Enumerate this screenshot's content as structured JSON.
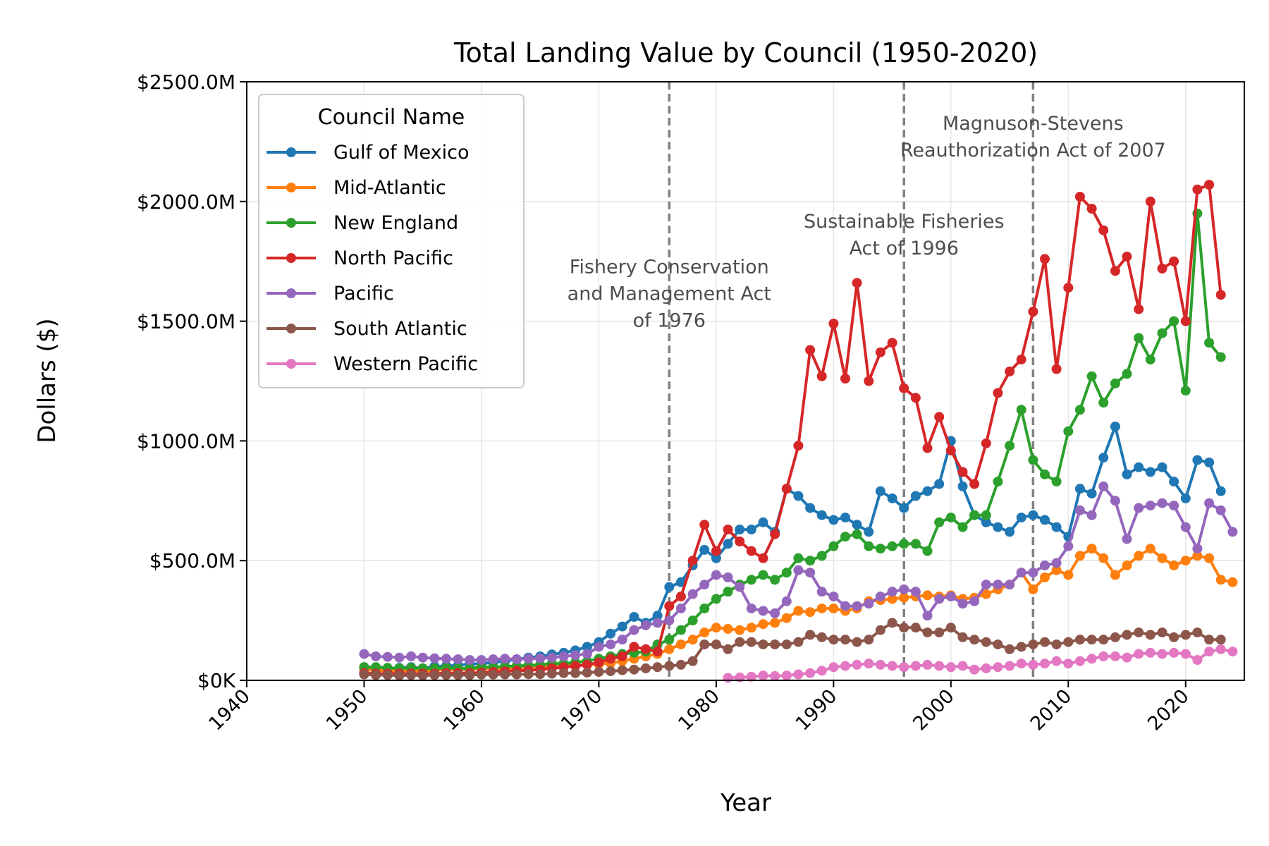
{
  "chart_data": {
    "type": "line",
    "title": "Total Landing Value by Council (1950-2020)",
    "xlabel": "Year",
    "ylabel": "Dollars ($)",
    "xlim": [
      1940,
      2025
    ],
    "ylim": [
      0,
      2500
    ],
    "y_units": "millions of dollars",
    "x_ticks": [
      1940,
      1950,
      1960,
      1970,
      1980,
      1990,
      2000,
      2010,
      2020
    ],
    "y_ticks": [
      0,
      500,
      1000,
      1500,
      2000,
      2500
    ],
    "y_tick_labels": [
      "$0K",
      "$500.0M",
      "$1000.0M",
      "$1500.0M",
      "$2000.0M",
      "$2500.0M"
    ],
    "grid": true,
    "legend": {
      "title": "Council Name",
      "placement": "upper-left"
    },
    "annotations": [
      {
        "x": 1976,
        "lines": [
          "Fishery Conservation",
          "and Management Act",
          "of 1976"
        ],
        "text_y": 1700
      },
      {
        "x": 1996,
        "lines": [
          "Sustainable Fisheries",
          "Act of 1996"
        ],
        "text_y": 1890
      },
      {
        "x": 2007,
        "lines": [
          "Magnuson-Stevens",
          "Reauthorization Act of 2007"
        ],
        "text_y": 2300
      }
    ],
    "series": [
      {
        "name": "Gulf of Mexico",
        "color": "#1f77b4",
        "start": 1950,
        "values": [
          55,
          50,
          48,
          52,
          55,
          50,
          58,
          60,
          62,
          68,
          70,
          75,
          80,
          88,
          95,
          100,
          108,
          115,
          125,
          140,
          160,
          195,
          225,
          265,
          240,
          270,
          390,
          410,
          480,
          545,
          510,
          570,
          630,
          630,
          660,
          620,
          800,
          770,
          720,
          690,
          670,
          680,
          650,
          620,
          790,
          760,
          720,
          770,
          790,
          820,
          1000,
          810,
          690,
          660,
          640,
          620,
          680,
          690,
          670,
          640,
          600,
          800,
          780,
          930,
          1060,
          860,
          890,
          870,
          890,
          830,
          760,
          920,
          910,
          790
        ]
      },
      {
        "name": "Mid-Atlantic",
        "color": "#ff7f0e",
        "start": 1950,
        "values": [
          45,
          42,
          40,
          40,
          42,
          40,
          42,
          45,
          45,
          46,
          48,
          50,
          50,
          52,
          55,
          56,
          58,
          60,
          62,
          65,
          68,
          72,
          80,
          90,
          100,
          110,
          130,
          150,
          170,
          200,
          220,
          215,
          210,
          220,
          235,
          240,
          260,
          290,
          285,
          300,
          300,
          290,
          300,
          330,
          335,
          340,
          345,
          350,
          355,
          350,
          355,
          340,
          345,
          360,
          380,
          400,
          450,
          380,
          430,
          460,
          440,
          520,
          550,
          510,
          440,
          480,
          520,
          550,
          510,
          480,
          500,
          520,
          510,
          420,
          410
        ]
      },
      {
        "name": "New England",
        "color": "#2ca02c",
        "start": 1950,
        "values": [
          55,
          55,
          52,
          50,
          52,
          50,
          50,
          52,
          50,
          50,
          55,
          55,
          58,
          60,
          62,
          65,
          70,
          70,
          75,
          80,
          90,
          100,
          110,
          115,
          120,
          150,
          170,
          210,
          250,
          300,
          340,
          370,
          400,
          420,
          440,
          420,
          450,
          510,
          500,
          520,
          560,
          600,
          610,
          560,
          550,
          560,
          570,
          570,
          540,
          660,
          680,
          640,
          690,
          690,
          830,
          980,
          1130,
          920,
          860,
          830,
          1040,
          1130,
          1270,
          1160,
          1240,
          1280,
          1430,
          1340,
          1450,
          1500,
          1210,
          1950,
          1410,
          1350
        ]
      },
      {
        "name": "North Pacific",
        "color": "#d62728",
        "start": 1950,
        "values": [
          30,
          28,
          28,
          28,
          28,
          28,
          28,
          30,
          30,
          30,
          32,
          35,
          38,
          40,
          42,
          45,
          50,
          55,
          60,
          65,
          75,
          90,
          100,
          140,
          130,
          120,
          310,
          350,
          500,
          650,
          540,
          630,
          580,
          540,
          510,
          610,
          800,
          980,
          1380,
          1270,
          1490,
          1260,
          1660,
          1250,
          1370,
          1410,
          1220,
          1180,
          970,
          1100,
          960,
          870,
          820,
          990,
          1200,
          1290,
          1340,
          1540,
          1760,
          1300,
          1640,
          2020,
          1970,
          1880,
          1710,
          1770,
          1550,
          2000,
          1720,
          1750,
          1500,
          2050,
          2070,
          1610
        ]
      },
      {
        "name": "Pacific",
        "color": "#9467bd",
        "start": 1950,
        "values": [
          110,
          100,
          98,
          95,
          100,
          95,
          92,
          90,
          88,
          85,
          85,
          88,
          90,
          88,
          90,
          92,
          95,
          100,
          105,
          110,
          140,
          150,
          170,
          210,
          230,
          240,
          250,
          300,
          360,
          400,
          440,
          430,
          390,
          300,
          290,
          280,
          330,
          460,
          450,
          370,
          350,
          310,
          310,
          320,
          350,
          370,
          380,
          370,
          270,
          340,
          350,
          320,
          330,
          400,
          400,
          400,
          450,
          450,
          480,
          490,
          560,
          710,
          690,
          810,
          750,
          590,
          720,
          730,
          740,
          730,
          640,
          550,
          740,
          710,
          620
        ]
      },
      {
        "name": "South Atlantic",
        "color": "#8c564b",
        "start": 1950,
        "values": [
          25,
          22,
          22,
          20,
          22,
          20,
          22,
          22,
          22,
          22,
          24,
          24,
          25,
          25,
          26,
          26,
          28,
          30,
          30,
          32,
          35,
          38,
          42,
          45,
          50,
          55,
          60,
          65,
          80,
          150,
          150,
          130,
          160,
          160,
          150,
          150,
          150,
          160,
          190,
          180,
          170,
          170,
          160,
          170,
          210,
          240,
          220,
          220,
          200,
          200,
          220,
          180,
          170,
          160,
          150,
          130,
          140,
          150,
          160,
          150,
          160,
          170,
          170,
          170,
          180,
          190,
          200,
          190,
          200,
          180,
          190,
          200,
          170,
          170
        ]
      },
      {
        "name": "Western Pacific",
        "color": "#e377c2",
        "start": 1981,
        "values": [
          10,
          12,
          15,
          20,
          18,
          20,
          25,
          30,
          40,
          55,
          60,
          65,
          70,
          65,
          60,
          55,
          60,
          65,
          60,
          55,
          60,
          45,
          50,
          55,
          60,
          70,
          65,
          70,
          80,
          70,
          80,
          90,
          100,
          100,
          95,
          110,
          115,
          110,
          115,
          110,
          85,
          120,
          130,
          120
        ]
      }
    ]
  }
}
